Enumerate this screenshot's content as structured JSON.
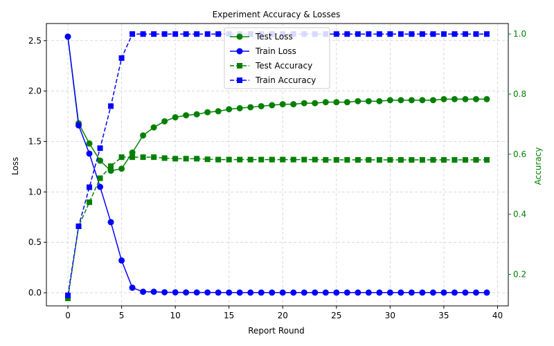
{
  "chart_data": {
    "type": "line",
    "title": "Experiment Accuracy & Losses",
    "xlabel": "Report Round",
    "ylabel": "Loss",
    "ylabel_right": "Accuracy",
    "xlim": [
      -2,
      41
    ],
    "ylim": [
      -0.13,
      2.67
    ],
    "ylim_right": [
      0.095,
      1.035
    ],
    "xticks": [
      0,
      5,
      10,
      15,
      20,
      25,
      30,
      35,
      40
    ],
    "yticks": [
      0.0,
      0.5,
      1.0,
      1.5,
      2.0,
      2.5
    ],
    "yticks_right": [
      0.2,
      0.4,
      0.6,
      0.8,
      1.0
    ],
    "grid": true,
    "legend_position": "top-center",
    "colors": {
      "test": "#008000",
      "train": "#0000ff",
      "right_axis": "#008000",
      "grid": "#d0d0d0"
    },
    "series": [
      {
        "name": "Test Loss",
        "axis": "left",
        "color": "#008000",
        "linestyle": "solid",
        "marker": "circle",
        "values": [
          2.54,
          1.68,
          1.48,
          1.31,
          1.21,
          1.23,
          1.39,
          1.56,
          1.64,
          1.7,
          1.74,
          1.76,
          1.77,
          1.79,
          1.8,
          1.82,
          1.83,
          1.84,
          1.85,
          1.86,
          1.87,
          1.87,
          1.88,
          1.88,
          1.89,
          1.89,
          1.89,
          1.9,
          1.9,
          1.9,
          1.91,
          1.91,
          1.91,
          1.91,
          1.91,
          1.92,
          1.92,
          1.92,
          1.92,
          1.92
        ]
      },
      {
        "name": "Train Loss",
        "axis": "left",
        "color": "#0000ff",
        "linestyle": "solid",
        "marker": "circle",
        "values": [
          2.54,
          1.66,
          1.38,
          1.05,
          0.7,
          0.32,
          0.05,
          0.01,
          0.01,
          0.005,
          0.004,
          0.003,
          0.003,
          0.003,
          0.002,
          0.002,
          0.002,
          0.002,
          0.002,
          0.002,
          0.002,
          0.002,
          0.002,
          0.002,
          0.002,
          0.002,
          0.002,
          0.002,
          0.002,
          0.002,
          0.002,
          0.002,
          0.002,
          0.002,
          0.002,
          0.002,
          0.002,
          0.002,
          0.002,
          0.002
        ]
      },
      {
        "name": "Test Accuracy",
        "axis": "right",
        "color": "#008000",
        "linestyle": "dashed",
        "marker": "square",
        "values": [
          0.12,
          0.36,
          0.44,
          0.52,
          0.56,
          0.59,
          0.59,
          0.59,
          0.59,
          0.587,
          0.585,
          0.585,
          0.585,
          0.583,
          0.582,
          0.582,
          0.582,
          0.582,
          0.582,
          0.582,
          0.582,
          0.582,
          0.582,
          0.582,
          0.581,
          0.581,
          0.581,
          0.581,
          0.581,
          0.581,
          0.581,
          0.581,
          0.581,
          0.581,
          0.581,
          0.581,
          0.581,
          0.581,
          0.581,
          0.581
        ]
      },
      {
        "name": "Train Accuracy",
        "axis": "right",
        "color": "#0000ff",
        "linestyle": "dashed",
        "marker": "square",
        "values": [
          0.13,
          0.36,
          0.49,
          0.62,
          0.76,
          0.92,
          1.0,
          1.0,
          1.0,
          1.0,
          1.0,
          1.0,
          1.0,
          1.0,
          1.0,
          1.0,
          1.0,
          1.0,
          1.0,
          1.0,
          1.0,
          1.0,
          1.0,
          1.0,
          1.0,
          1.0,
          1.0,
          1.0,
          1.0,
          1.0,
          1.0,
          1.0,
          1.0,
          1.0,
          1.0,
          1.0,
          1.0,
          1.0,
          1.0,
          1.0
        ]
      }
    ]
  }
}
